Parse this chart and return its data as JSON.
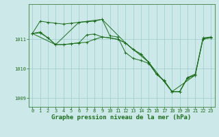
{
  "background_color": "#cce8e8",
  "grid_color": "#99cccc",
  "line_color": "#1a6e1a",
  "xlabel": "Graphe pression niveau de la mer (hPa)",
  "xlabel_fontsize": 6.5,
  "tick_fontsize": 5.0,
  "ylim": [
    1008.7,
    1012.2
  ],
  "xlim": [
    -0.5,
    23.5
  ],
  "yticks": [
    1009,
    1010,
    1011
  ],
  "xticks": [
    0,
    1,
    2,
    3,
    4,
    5,
    6,
    7,
    8,
    9,
    10,
    11,
    12,
    13,
    14,
    15,
    16,
    17,
    18,
    19,
    20,
    21,
    22,
    23
  ],
  "s1_x": [
    0,
    1,
    2,
    3,
    4,
    5,
    6,
    7,
    8,
    9,
    10,
    11,
    12,
    13,
    14,
    15,
    16,
    17,
    18,
    19,
    20,
    21,
    22,
    23
  ],
  "s1_y": [
    1011.2,
    1011.62,
    1011.58,
    1011.55,
    1011.52,
    1011.55,
    1011.58,
    1011.6,
    1011.62,
    1011.68,
    1011.12,
    1011.08,
    1010.55,
    1010.35,
    1010.28,
    1010.18,
    1009.82,
    1009.6,
    1009.22,
    1009.22,
    1009.7,
    1009.82,
    1011.05,
    1011.08
  ],
  "s2_x": [
    0,
    1,
    2,
    3,
    4,
    5,
    6,
    7,
    8,
    9,
    10,
    11,
    12,
    13,
    14,
    15,
    16,
    17,
    18,
    19,
    20,
    21,
    22,
    23
  ],
  "s2_y": [
    1011.2,
    1011.25,
    1011.05,
    1010.82,
    1010.82,
    1010.85,
    1010.88,
    1010.9,
    1011.0,
    1011.08,
    1011.05,
    1011.0,
    1010.88,
    1010.65,
    1010.5,
    1010.22,
    1009.82,
    1009.58,
    1009.22,
    1009.22,
    1009.68,
    1009.78,
    1011.02,
    1011.05
  ],
  "s3_x": [
    0,
    1,
    2,
    3,
    4,
    5,
    6,
    7,
    8,
    9,
    10,
    11,
    12,
    13,
    14,
    15,
    16,
    17,
    18,
    19,
    20,
    21,
    22,
    23
  ],
  "s3_y": [
    1011.2,
    1011.22,
    1011.05,
    1010.82,
    1010.82,
    1010.85,
    1010.88,
    1011.15,
    1011.18,
    1011.08,
    1011.05,
    1011.0,
    1010.88,
    1010.65,
    1010.5,
    1010.22,
    1009.82,
    1009.58,
    1009.22,
    1009.22,
    1009.68,
    1009.78,
    1011.02,
    1011.05
  ],
  "s4_x": [
    0,
    3,
    6,
    9,
    12,
    15,
    18,
    21
  ],
  "s4_y": [
    1011.2,
    1010.82,
    1011.58,
    1011.68,
    1010.88,
    1010.22,
    1009.22,
    1009.78
  ]
}
